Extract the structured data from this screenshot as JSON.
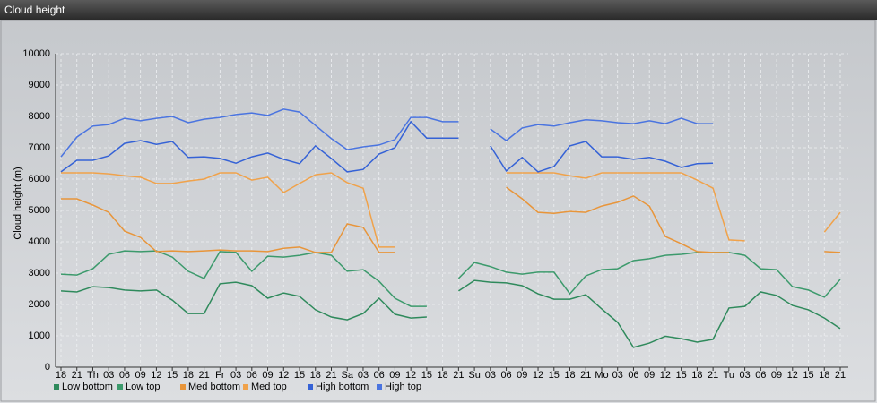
{
  "header": {
    "title": "Cloud height"
  },
  "chart_data": {
    "type": "line",
    "y_label": "Cloud height (m)",
    "categories": [
      "18",
      "21",
      "Th",
      "03",
      "06",
      "09",
      "12",
      "15",
      "18",
      "21",
      "Fr",
      "03",
      "06",
      "09",
      "12",
      "15",
      "18",
      "21",
      "Sa",
      "03",
      "06",
      "09",
      "12",
      "15",
      "18",
      "21",
      "Su",
      "03",
      "06",
      "09",
      "12",
      "15",
      "18",
      "21",
      "Mo",
      "03",
      "06",
      "09",
      "12",
      "15",
      "18",
      "21",
      "Tu",
      "03",
      "06",
      "09",
      "12",
      "15",
      "18",
      "21"
    ],
    "ylim": [
      0,
      10000
    ],
    "yticks": [
      0,
      1000,
      2000,
      3000,
      4000,
      5000,
      6000,
      7000,
      8000,
      9000,
      10000
    ],
    "grid": true,
    "series": [
      {
        "name": "Low bottom",
        "color": "#2f8a5c",
        "values": [
          2430,
          2400,
          2570,
          2540,
          2460,
          2430,
          2460,
          2140,
          1710,
          1710,
          2660,
          2710,
          2600,
          2200,
          2370,
          2260,
          1830,
          1600,
          1510,
          1710,
          2200,
          1690,
          1570,
          1600,
          null,
          2430,
          2770,
          2710,
          2690,
          2600,
          2340,
          2170,
          2170,
          2310,
          1860,
          1430,
          630,
          770,
          990,
          910,
          800,
          890,
          1890,
          1940,
          2400,
          2290,
          1970,
          1830,
          1570,
          1230
        ]
      },
      {
        "name": "Low top",
        "color": "#3c9a6c",
        "values": [
          2970,
          2940,
          3140,
          3600,
          3710,
          3690,
          3710,
          3510,
          3060,
          2830,
          3690,
          3660,
          3060,
          3540,
          3510,
          3570,
          3660,
          3570,
          3060,
          3110,
          2740,
          2200,
          1940,
          1940,
          null,
          2830,
          3340,
          3210,
          3030,
          2970,
          3030,
          3030,
          2340,
          2910,
          3110,
          3140,
          3400,
          3460,
          3570,
          3600,
          3660,
          3660,
          3660,
          3570,
          3140,
          3110,
          2570,
          2460,
          2230,
          2800
        ]
      },
      {
        "name": "Med bottom",
        "color": "#e8953a",
        "values": [
          5370,
          5370,
          5170,
          4940,
          4340,
          4140,
          3690,
          3710,
          3690,
          3710,
          3740,
          3710,
          3710,
          3690,
          3790,
          3830,
          3660,
          3660,
          4570,
          4460,
          3660,
          3660,
          null,
          null,
          null,
          null,
          null,
          null,
          5740,
          5370,
          4940,
          4910,
          4970,
          4940,
          5140,
          5260,
          5460,
          5140,
          4170,
          3940,
          3690,
          3660,
          3660,
          null,
          null,
          null,
          null,
          null,
          3690,
          3660
        ]
      },
      {
        "name": "Med top",
        "color": "#f0a24a",
        "values": [
          6200,
          6200,
          6200,
          6170,
          6110,
          6060,
          5860,
          5860,
          5940,
          6000,
          6200,
          6200,
          5970,
          6060,
          5570,
          5860,
          6140,
          6200,
          5890,
          5710,
          3830,
          3830,
          null,
          null,
          null,
          null,
          null,
          null,
          6200,
          6200,
          6200,
          6200,
          6110,
          6030,
          6200,
          6200,
          6200,
          6200,
          6200,
          6200,
          5970,
          5710,
          4060,
          4030,
          null,
          null,
          null,
          null,
          4310,
          4940
        ]
      },
      {
        "name": "High bottom",
        "color": "#3562d6",
        "values": [
          6230,
          6600,
          6600,
          6740,
          7140,
          7230,
          7110,
          7200,
          6690,
          6710,
          6660,
          6510,
          6710,
          6830,
          6630,
          6490,
          7060,
          6660,
          6230,
          6310,
          6800,
          7000,
          7830,
          7310,
          7310,
          7310,
          null,
          7060,
          6260,
          6690,
          6230,
          6400,
          7060,
          7200,
          6710,
          6710,
          6630,
          6690,
          6570,
          6370,
          6490,
          6510,
          null,
          null,
          null,
          null,
          null,
          null,
          null,
          null
        ]
      },
      {
        "name": "High top",
        "color": "#4a74e0",
        "values": [
          6710,
          7340,
          7690,
          7740,
          7940,
          7860,
          7940,
          8000,
          7800,
          7910,
          7970,
          8060,
          8110,
          8030,
          8230,
          8140,
          7710,
          7290,
          6940,
          7030,
          7090,
          7260,
          7970,
          7970,
          7830,
          7830,
          null,
          7600,
          7230,
          7630,
          7740,
          7690,
          7800,
          7890,
          7860,
          7800,
          7770,
          7860,
          7770,
          7940,
          7770,
          7770,
          null,
          null,
          null,
          null,
          null,
          null,
          null,
          null
        ]
      }
    ]
  }
}
